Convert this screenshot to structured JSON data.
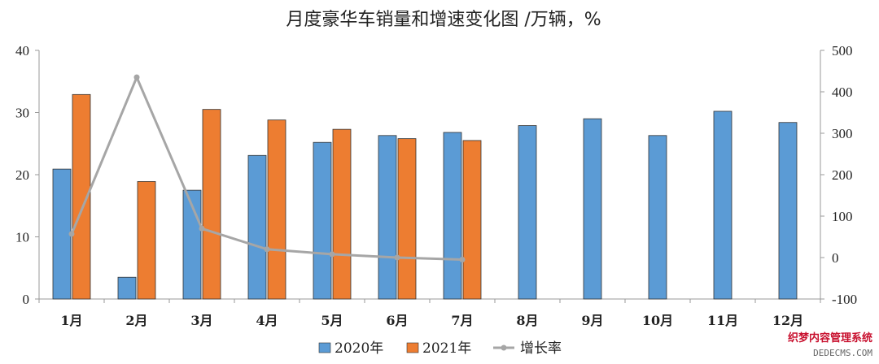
{
  "chart_data": {
    "type": "bar",
    "title": "月度豪华车销量和增速变化图 /万辆，%",
    "categories": [
      "1月",
      "2月",
      "3月",
      "4月",
      "5月",
      "6月",
      "7月",
      "8月",
      "9月",
      "10月",
      "11月",
      "12月"
    ],
    "series": [
      {
        "name": "2020年",
        "kind": "bar",
        "axis": "left",
        "color": "#5b9bd5",
        "values": [
          20.9,
          3.5,
          17.5,
          23.1,
          25.2,
          26.3,
          26.8,
          27.9,
          29.0,
          26.3,
          30.2,
          28.4
        ]
      },
      {
        "name": "2021年",
        "kind": "bar",
        "axis": "left",
        "color": "#ed7d31",
        "values": [
          32.9,
          18.9,
          30.5,
          28.8,
          27.3,
          25.8,
          25.5,
          null,
          null,
          null,
          null,
          null
        ]
      },
      {
        "name": "增长率",
        "kind": "line",
        "axis": "right",
        "color": "#a6a6a6",
        "values": [
          57,
          435,
          70,
          20,
          8,
          0,
          -5,
          null,
          null,
          null,
          null,
          null
        ]
      }
    ],
    "y_left": {
      "min": 0,
      "max": 40,
      "ticks": [
        0,
        10,
        20,
        30,
        40
      ]
    },
    "y_right": {
      "min": -100,
      "max": 500,
      "ticks": [
        -100,
        0,
        100,
        200,
        300,
        400,
        500
      ]
    },
    "legend_position": "bottom",
    "grid": false
  },
  "watermark": {
    "line1": "织梦内容管理系统",
    "line2": "DEDECMS.COM"
  }
}
